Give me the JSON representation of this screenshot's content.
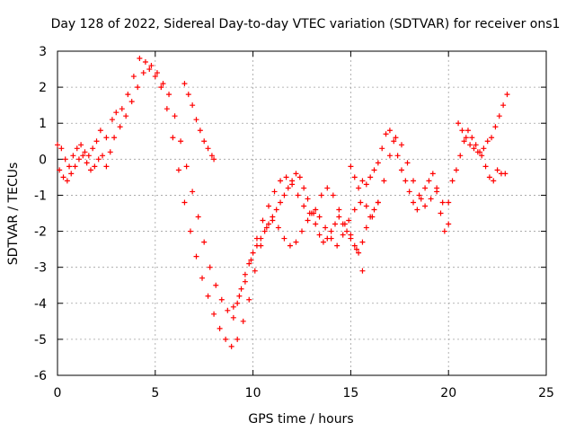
{
  "chart_data": {
    "type": "scatter",
    "title": "Day 128 of 2022, Sidereal Day-to-day VTEC variation (SDTVAR) for receiver ons1",
    "xlabel": "GPS time / hours",
    "ylabel": "SDTVAR / TECUs",
    "xlim": [
      0,
      25
    ],
    "ylim": [
      -6,
      3
    ],
    "xticks": [
      "0",
      "5",
      "10",
      "15",
      "20",
      "25"
    ],
    "yticks": [
      "3",
      "2",
      "1",
      "0",
      "-1",
      "-2",
      "-3",
      "-4",
      "-5",
      "-6"
    ],
    "grid": true,
    "marker": "+",
    "color": "#ff0000",
    "series": [
      {
        "x": [
          0.0,
          0.2,
          0.4,
          0.6,
          0.8,
          1.0,
          1.2,
          1.4,
          1.6,
          1.8,
          2.0,
          2.2,
          2.5,
          2.8,
          3.0,
          3.3,
          3.6,
          3.9,
          4.2,
          4.5,
          4.8,
          5.1,
          5.4,
          5.7,
          6.0,
          6.3,
          6.6,
          6.9,
          7.2,
          7.5,
          7.8,
          8.1,
          8.4,
          8.7,
          9.0,
          9.3,
          9.6,
          9.9,
          10.2,
          10.5,
          10.8,
          11.1,
          11.4,
          11.7,
          12.0,
          12.3,
          12.6,
          12.9,
          13.2,
          13.5,
          13.8,
          14.1,
          14.4,
          14.7,
          15.0,
          15.3,
          15.6
        ],
        "y": [
          0.4,
          0.3,
          0.0,
          -0.2,
          0.1,
          0.3,
          0.4,
          0.2,
          0.1,
          0.3,
          0.5,
          0.8,
          0.6,
          1.1,
          1.3,
          1.4,
          1.8,
          2.3,
          2.8,
          2.7,
          2.6,
          2.4,
          2.1,
          1.8,
          1.2,
          0.5,
          -0.2,
          -0.9,
          -1.6,
          -2.3,
          -3.0,
          -3.5,
          -3.9,
          -4.2,
          -4.1,
          -3.8,
          -3.4,
          -2.8,
          -2.2,
          -1.7,
          -1.3,
          -0.9,
          -0.6,
          -0.5,
          -0.7,
          -1.0,
          -1.3,
          -1.5,
          -1.4,
          -1.0,
          -0.8,
          -1.0,
          -1.4,
          -1.8,
          -2.1,
          -2.5,
          -3.1
        ]
      },
      {
        "x": [
          0.1,
          0.3,
          0.5,
          0.7,
          0.9,
          1.1,
          1.3,
          1.5,
          1.7,
          1.9,
          2.1,
          2.3,
          2.5,
          2.7,
          2.9,
          3.2,
          3.5,
          3.8,
          4.1,
          4.4,
          4.7,
          5.0,
          5.3,
          5.6,
          5.9,
          6.2,
          6.5,
          6.8,
          7.1,
          7.4,
          7.7,
          8.0,
          8.3,
          8.6,
          8.9,
          9.2,
          9.5,
          9.8,
          10.1,
          10.4,
          10.7,
          11.0,
          11.3,
          11.6,
          11.9,
          12.2,
          12.5,
          12.8,
          13.1,
          13.4,
          13.7,
          14.0,
          14.3,
          14.6,
          14.9,
          15.2,
          15.5,
          15.8,
          16.1,
          16.4,
          16.7,
          17.0,
          17.3,
          17.6,
          17.9,
          18.2,
          18.5,
          18.8,
          19.1,
          19.4,
          19.7,
          20.0
        ],
        "y": [
          -0.3,
          -0.5,
          -0.6,
          -0.4,
          -0.2,
          0.0,
          0.1,
          -0.1,
          -0.3,
          -0.2,
          0.0,
          0.1,
          -0.2,
          0.2,
          0.6,
          0.9,
          1.2,
          1.6,
          2.0,
          2.4,
          2.5,
          2.3,
          2.0,
          1.4,
          0.6,
          -0.3,
          -1.2,
          -2.0,
          -2.7,
          -3.3,
          -3.8,
          -4.3,
          -4.7,
          -5.0,
          -5.2,
          -5.0,
          -4.5,
          -3.9,
          -3.1,
          -2.4,
          -1.9,
          -1.7,
          -1.9,
          -2.2,
          -2.4,
          -2.3,
          -2.0,
          -1.7,
          -1.5,
          -1.6,
          -1.9,
          -2.2,
          -2.4,
          -2.1,
          -1.7,
          -1.4,
          -1.2,
          -1.3,
          -1.6,
          -1.2,
          -0.6,
          0.1,
          0.6,
          0.4,
          -0.1,
          -0.6,
          -1.0,
          -1.3,
          -1.1,
          -0.8,
          -1.2,
          -1.8
        ]
      },
      {
        "x": [
          6.5,
          6.7,
          6.9,
          7.1,
          7.3,
          7.5,
          7.7,
          7.9,
          8.0
        ],
        "y": [
          2.1,
          1.8,
          1.5,
          1.1,
          0.8,
          0.5,
          0.3,
          0.1,
          0.0
        ]
      },
      {
        "x": [
          9.0,
          9.2,
          9.4,
          9.6,
          9.8,
          10.0,
          10.2,
          10.4,
          10.6,
          10.8,
          11.0,
          11.2,
          11.4,
          11.6,
          11.8,
          12.0,
          12.2,
          12.4,
          12.6,
          12.8,
          13.0,
          13.2,
          13.4,
          13.6,
          13.8,
          14.0,
          14.2,
          14.4,
          14.6,
          14.8,
          15.0,
          15.2,
          15.4,
          15.6,
          15.8,
          16.0,
          16.2,
          16.4
        ],
        "y": [
          -4.4,
          -4.0,
          -3.6,
          -3.2,
          -2.9,
          -2.6,
          -2.4,
          -2.2,
          -2.0,
          -1.8,
          -1.6,
          -1.4,
          -1.2,
          -1.0,
          -0.8,
          -0.6,
          -0.4,
          -0.5,
          -0.8,
          -1.1,
          -1.5,
          -1.8,
          -2.1,
          -2.3,
          -2.2,
          -2.0,
          -1.8,
          -1.6,
          -1.8,
          -2.0,
          -2.2,
          -2.4,
          -2.6,
          -2.3,
          -1.9,
          -1.6,
          -1.4,
          -1.2
        ]
      },
      {
        "x": [
          15.0,
          15.2,
          15.4,
          15.6,
          15.8,
          16.0,
          16.2,
          16.4,
          16.6,
          16.8,
          17.0,
          17.2,
          17.4,
          17.6,
          17.8,
          18.0,
          18.2,
          18.4,
          18.6,
          18.8,
          19.0,
          19.2,
          19.4,
          19.6,
          19.8,
          20.0,
          20.2,
          20.4,
          20.6,
          20.8,
          21.0,
          21.2,
          21.4,
          21.6,
          21.8,
          22.0,
          22.2,
          22.4,
          22.6,
          22.8,
          23.0
        ],
        "y": [
          -0.2,
          -0.5,
          -0.8,
          -0.6,
          -0.7,
          -0.5,
          -0.3,
          -0.1,
          0.3,
          0.7,
          0.8,
          0.5,
          0.1,
          -0.3,
          -0.6,
          -0.9,
          -1.2,
          -1.4,
          -1.1,
          -0.8,
          -0.6,
          -0.4,
          -0.9,
          -1.5,
          -2.0,
          -1.2,
          -0.6,
          -0.3,
          0.1,
          0.5,
          0.8,
          0.6,
          0.4,
          0.2,
          0.3,
          0.5,
          0.6,
          0.9,
          1.2,
          1.5,
          1.8
        ]
      },
      {
        "x": [
          20.5,
          20.7,
          20.9,
          21.1,
          21.3,
          21.5,
          21.7,
          21.9,
          22.1,
          22.3,
          22.5,
          22.7,
          22.9
        ],
        "y": [
          1.0,
          0.8,
          0.6,
          0.4,
          0.3,
          0.2,
          0.1,
          -0.2,
          -0.5,
          -0.6,
          -0.3,
          -0.4,
          -0.4
        ]
      }
    ]
  }
}
